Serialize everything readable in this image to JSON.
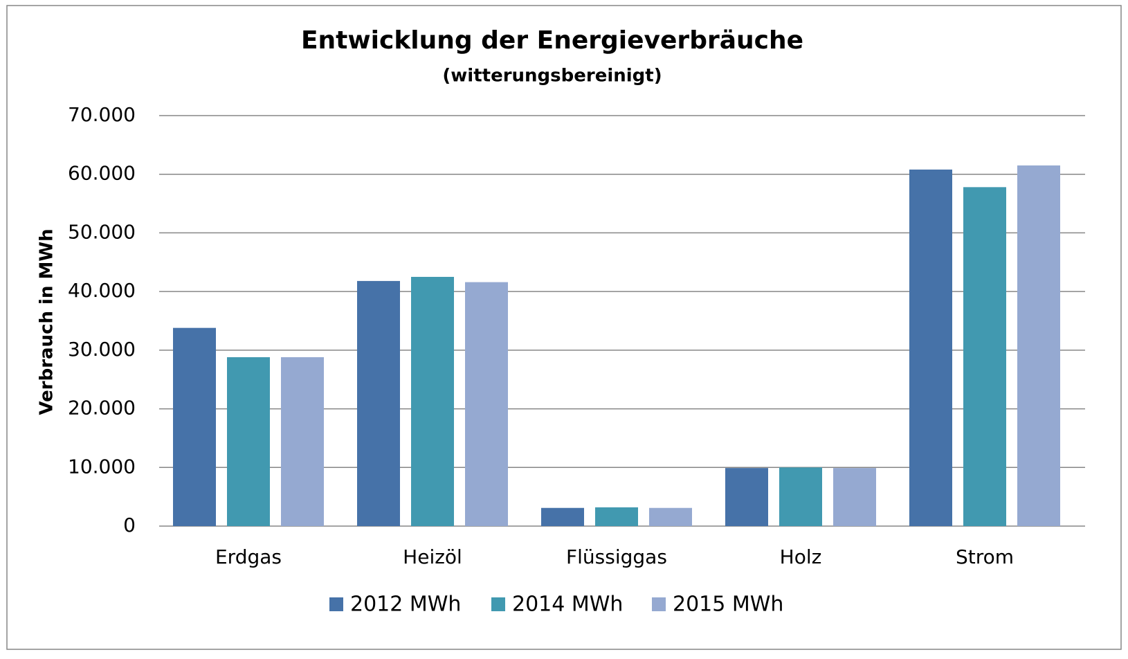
{
  "chart_data": {
    "type": "bar",
    "title": "Entwicklung der Energieverbräuche",
    "subtitle": "(witterungsbereinigt)",
    "y_label": "Verbrauch in MWh",
    "categories": [
      "Erdgas",
      "Heizöl",
      "Flüssiggas",
      "Holz",
      "Strom"
    ],
    "series": [
      {
        "name": "2012 MWh",
        "color": "#4672a8",
        "values": [
          33800,
          41800,
          3100,
          9900,
          60800
        ]
      },
      {
        "name": "2014 MWh",
        "color": "#4199b0",
        "values": [
          28800,
          42500,
          3200,
          10000,
          57800
        ]
      },
      {
        "name": "2015 MWh",
        "color": "#95a9d1",
        "values": [
          28800,
          41600,
          3100,
          9900,
          61500
        ]
      }
    ],
    "ylim": [
      0,
      70000
    ],
    "yticks": [
      0,
      {
        "value": 10000,
        "label": "10.000"
      },
      {
        "value": 20000,
        "label": "20.000"
      },
      {
        "value": 30000,
        "label": "30.000"
      },
      {
        "value": 40000,
        "label": "40.000"
      },
      {
        "value": 50000,
        "label": "50.000"
      },
      {
        "value": 60000,
        "label": "60.000"
      },
      {
        "value": 70000,
        "label": "70.000"
      }
    ],
    "grid": true,
    "legend": "bottom"
  }
}
